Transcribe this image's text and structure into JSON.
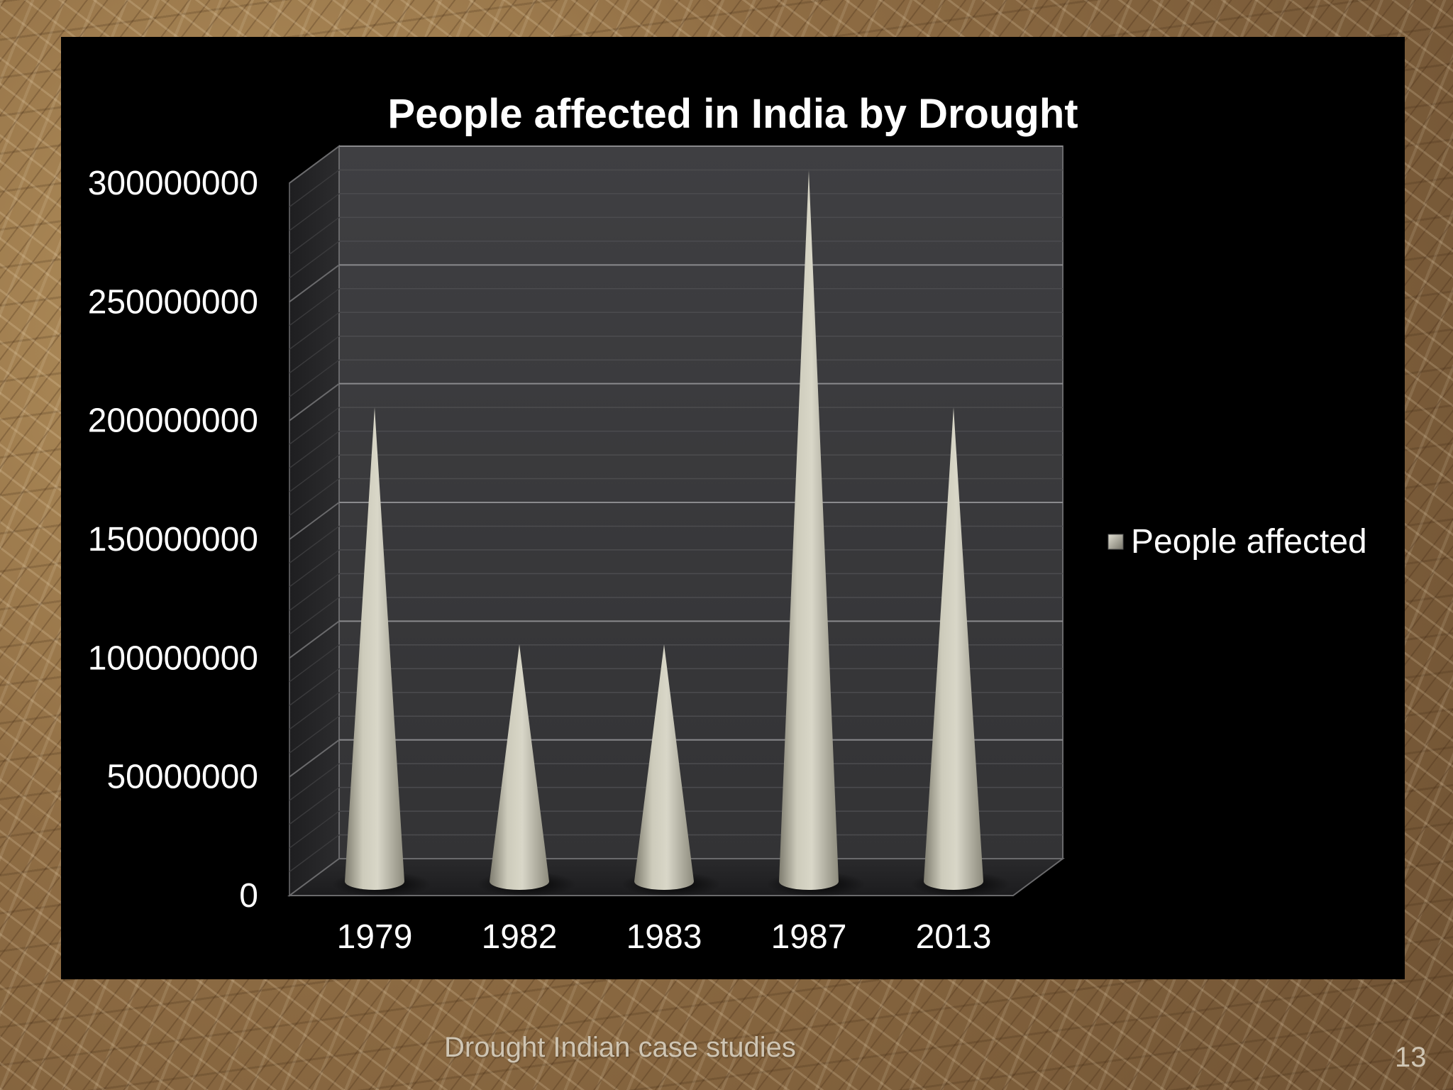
{
  "footer": {
    "text": "Drought  Indian case studies",
    "page_number": "13"
  },
  "colors": {
    "panel_background": "#000000",
    "plot_wall": "#3a3a3c",
    "cone": "#c9c7b7",
    "text": "#ffffff"
  },
  "chart_data": {
    "type": "bar",
    "style": "3d-cone",
    "title": "People affected in India by Drought",
    "xlabel": "",
    "ylabel": "",
    "categories": [
      "1979",
      "1982",
      "1983",
      "1987",
      "2013"
    ],
    "series": [
      {
        "name": "People affected",
        "values": [
          200000000,
          100000000,
          100000000,
          300000000,
          200000000
        ]
      }
    ],
    "ylim": [
      0,
      300000000
    ],
    "yticks": [
      "0",
      "50000000",
      "100000000",
      "150000000",
      "200000000",
      "250000000",
      "300000000"
    ],
    "grid": true,
    "legend": "right"
  }
}
